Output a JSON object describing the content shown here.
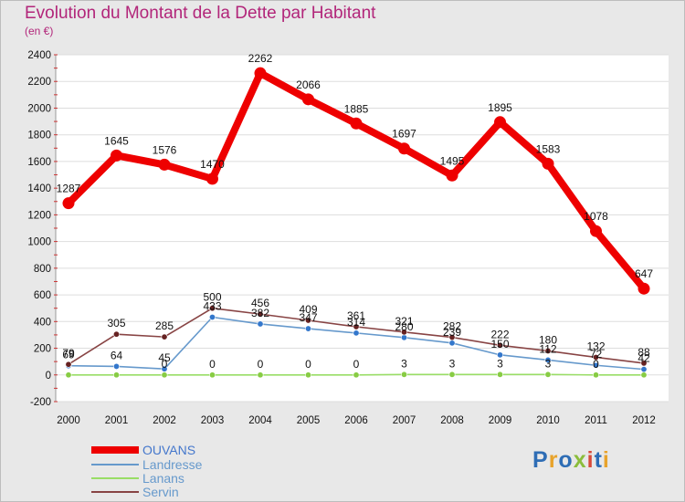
{
  "header": {
    "title": "Evolution du Montant de la Dette par Habitant",
    "subtitle": "(en €)"
  },
  "logo": {
    "text": "Proxiti",
    "letter_colors": [
      "#2e6db5",
      "#e8a32b",
      "#2e6db5",
      "#8bbd3c",
      "#d84a3a",
      "#2e6db5",
      "#e8a32b"
    ]
  },
  "colors": {
    "background": "#e8e8e8",
    "plot_background": "#ffffff",
    "title": "#b2267a",
    "axis_tick_marks": "#cc3333"
  },
  "chart_data": {
    "type": "line",
    "title": "Evolution du Montant de la Dette par Habitant",
    "subtitle": "(en €)",
    "xlabel": "",
    "ylabel": "",
    "x": [
      2000,
      2001,
      2002,
      2003,
      2004,
      2005,
      2006,
      2007,
      2008,
      2009,
      2010,
      2011,
      2012
    ],
    "ylim": [
      -200,
      2400
    ],
    "yticks": [
      -200,
      0,
      200,
      400,
      600,
      800,
      1000,
      1200,
      1400,
      1600,
      1800,
      2000,
      2200,
      2400
    ],
    "grid": "horizontal",
    "legend_position": "bottom-left",
    "series": [
      {
        "name": "OUVANS",
        "color": "#ee0000",
        "marker_color": "#ee0000",
        "values": [
          1287,
          1645,
          1576,
          1470,
          2262,
          2066,
          1885,
          1697,
          1495,
          1895,
          1583,
          1078,
          647
        ],
        "labels": [
          "1287",
          "1645",
          "1576",
          "1470",
          "2262",
          "2066",
          "1885",
          "1697",
          "1495",
          "1895",
          "1583",
          "1078",
          "647"
        ]
      },
      {
        "name": "Landresse",
        "color": "#6699cc",
        "marker_color": "#3377cc",
        "values": [
          69,
          64,
          45,
          433,
          382,
          347,
          314,
          280,
          239,
          150,
          112,
          72,
          42
        ],
        "labels": [
          "69",
          "64",
          "45",
          "433",
          "382",
          "347",
          "314",
          "280",
          "239",
          "150",
          "112",
          "72",
          "42"
        ]
      },
      {
        "name": "Lanans",
        "color": "#99dd66",
        "marker_color": "#88cc44",
        "values": [
          0,
          0,
          0,
          0,
          0,
          0,
          0,
          3,
          3,
          3,
          3,
          0,
          0
        ],
        "labels": [
          "",
          "",
          "0",
          "0",
          "0",
          "0",
          "0",
          "3",
          "3",
          "3",
          "3",
          "0",
          ""
        ]
      },
      {
        "name": "Servin",
        "color": "#884444",
        "marker_color": "#662222",
        "values": [
          79,
          305,
          285,
          500,
          456,
          409,
          361,
          321,
          282,
          222,
          180,
          132,
          88
        ],
        "labels": [
          "79",
          "305",
          "285",
          "500",
          "456",
          "409",
          "361",
          "321",
          "282",
          "222",
          "180",
          "132",
          "88"
        ]
      }
    ]
  }
}
